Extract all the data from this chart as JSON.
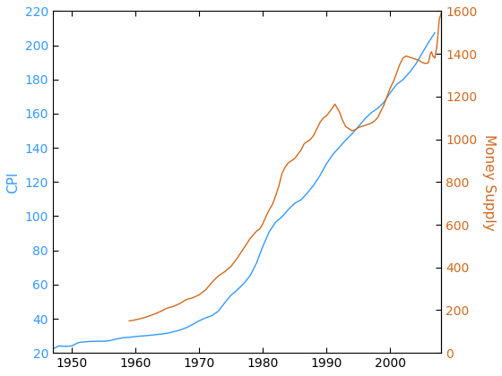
{
  "ylabel_left": "CPI",
  "ylabel_right": "Money Supply",
  "line1_color": "#3399FF",
  "line2_color": "#D2691E",
  "xlim": [
    1947,
    2008
  ],
  "ylim_left": [
    20,
    220
  ],
  "ylim_right": [
    0,
    1600
  ],
  "xticks": [
    1950,
    1960,
    1970,
    1980,
    1990,
    2000
  ],
  "yticks_left": [
    20,
    40,
    60,
    80,
    100,
    120,
    140,
    160,
    180,
    200,
    220
  ],
  "yticks_right": [
    0,
    200,
    400,
    600,
    800,
    1000,
    1200,
    1400,
    1600
  ],
  "cpi_data": [
    [
      1947,
      22.3
    ],
    [
      1948,
      24.1
    ],
    [
      1949,
      23.8
    ],
    [
      1950,
      24.1
    ],
    [
      1951,
      26.0
    ],
    [
      1952,
      26.5
    ],
    [
      1953,
      26.7
    ],
    [
      1954,
      26.9
    ],
    [
      1955,
      26.8
    ],
    [
      1956,
      27.2
    ],
    [
      1957,
      28.1
    ],
    [
      1958,
      28.9
    ],
    [
      1959,
      29.1
    ],
    [
      1960,
      29.6
    ],
    [
      1961,
      29.9
    ],
    [
      1962,
      30.2
    ],
    [
      1963,
      30.6
    ],
    [
      1964,
      31.0
    ],
    [
      1965,
      31.5
    ],
    [
      1966,
      32.4
    ],
    [
      1967,
      33.4
    ],
    [
      1968,
      34.8
    ],
    [
      1969,
      36.7
    ],
    [
      1970,
      38.8
    ],
    [
      1971,
      40.5
    ],
    [
      1972,
      41.8
    ],
    [
      1973,
      44.4
    ],
    [
      1974,
      49.3
    ],
    [
      1975,
      53.8
    ],
    [
      1976,
      56.9
    ],
    [
      1977,
      60.6
    ],
    [
      1978,
      65.2
    ],
    [
      1979,
      72.6
    ],
    [
      1980,
      82.4
    ],
    [
      1981,
      90.9
    ],
    [
      1982,
      96.5
    ],
    [
      1983,
      99.6
    ],
    [
      1984,
      103.9
    ],
    [
      1985,
      107.6
    ],
    [
      1986,
      109.6
    ],
    [
      1987,
      113.6
    ],
    [
      1988,
      118.3
    ],
    [
      1989,
      124.0
    ],
    [
      1990,
      130.7
    ],
    [
      1991,
      136.2
    ],
    [
      1992,
      140.3
    ],
    [
      1993,
      144.5
    ],
    [
      1994,
      148.2
    ],
    [
      1995,
      152.4
    ],
    [
      1996,
      156.9
    ],
    [
      1997,
      160.5
    ],
    [
      1998,
      163.0
    ],
    [
      1999,
      166.6
    ],
    [
      2000,
      172.2
    ],
    [
      2001,
      177.1
    ],
    [
      2002,
      179.9
    ],
    [
      2003,
      184.0
    ],
    [
      2004,
      188.9
    ],
    [
      2005,
      195.3
    ],
    [
      2006,
      201.6
    ],
    [
      2007,
      207.3
    ]
  ],
  "m2_data": [
    [
      1959.0,
      150
    ],
    [
      1959.5,
      152
    ],
    [
      1960.0,
      155
    ],
    [
      1961.0,
      162
    ],
    [
      1962.0,
      171
    ],
    [
      1963.0,
      182
    ],
    [
      1964.0,
      195
    ],
    [
      1965.0,
      210
    ],
    [
      1966.0,
      218
    ],
    [
      1967.0,
      232
    ],
    [
      1968.0,
      250
    ],
    [
      1969.0,
      258
    ],
    [
      1970.0,
      272
    ],
    [
      1971.0,
      295
    ],
    [
      1972.0,
      330
    ],
    [
      1973.0,
      360
    ],
    [
      1974.0,
      380
    ],
    [
      1975.0,
      405
    ],
    [
      1976.0,
      445
    ],
    [
      1977.0,
      490
    ],
    [
      1978.0,
      535
    ],
    [
      1979.0,
      570
    ],
    [
      1979.5,
      580
    ],
    [
      1980.0,
      605
    ],
    [
      1980.5,
      640
    ],
    [
      1981.0,
      670
    ],
    [
      1981.5,
      695
    ],
    [
      1982.0,
      735
    ],
    [
      1982.5,
      780
    ],
    [
      1983.0,
      840
    ],
    [
      1983.5,
      870
    ],
    [
      1984.0,
      890
    ],
    [
      1984.5,
      900
    ],
    [
      1985.0,
      910
    ],
    [
      1985.5,
      930
    ],
    [
      1986.0,
      950
    ],
    [
      1986.5,
      980
    ],
    [
      1987.0,
      990
    ],
    [
      1987.5,
      1000
    ],
    [
      1988.0,
      1020
    ],
    [
      1988.5,
      1050
    ],
    [
      1989.0,
      1080
    ],
    [
      1989.5,
      1100
    ],
    [
      1990.0,
      1110
    ],
    [
      1990.5,
      1130
    ],
    [
      1991.0,
      1150
    ],
    [
      1991.3,
      1165
    ],
    [
      1991.5,
      1155
    ],
    [
      1992.0,
      1130
    ],
    [
      1992.5,
      1090
    ],
    [
      1993.0,
      1060
    ],
    [
      1993.5,
      1050
    ],
    [
      1994.0,
      1040
    ],
    [
      1994.5,
      1045
    ],
    [
      1995.0,
      1055
    ],
    [
      1995.5,
      1060
    ],
    [
      1996.0,
      1065
    ],
    [
      1996.5,
      1070
    ],
    [
      1997.0,
      1075
    ],
    [
      1997.5,
      1085
    ],
    [
      1998.0,
      1100
    ],
    [
      1998.5,
      1130
    ],
    [
      1999.0,
      1160
    ],
    [
      1999.5,
      1200
    ],
    [
      2000.0,
      1240
    ],
    [
      2000.5,
      1270
    ],
    [
      2001.0,
      1310
    ],
    [
      2001.5,
      1350
    ],
    [
      2002.0,
      1380
    ],
    [
      2002.5,
      1390
    ],
    [
      2003.0,
      1385
    ],
    [
      2003.5,
      1380
    ],
    [
      2004.0,
      1375
    ],
    [
      2004.5,
      1370
    ],
    [
      2005.0,
      1360
    ],
    [
      2005.5,
      1355
    ],
    [
      2006.0,
      1358
    ],
    [
      2006.3,
      1400
    ],
    [
      2006.5,
      1410
    ],
    [
      2006.7,
      1390
    ],
    [
      2007.0,
      1380
    ],
    [
      2007.3,
      1430
    ],
    [
      2007.5,
      1490
    ],
    [
      2007.7,
      1560
    ],
    [
      2008.0,
      1590
    ]
  ]
}
